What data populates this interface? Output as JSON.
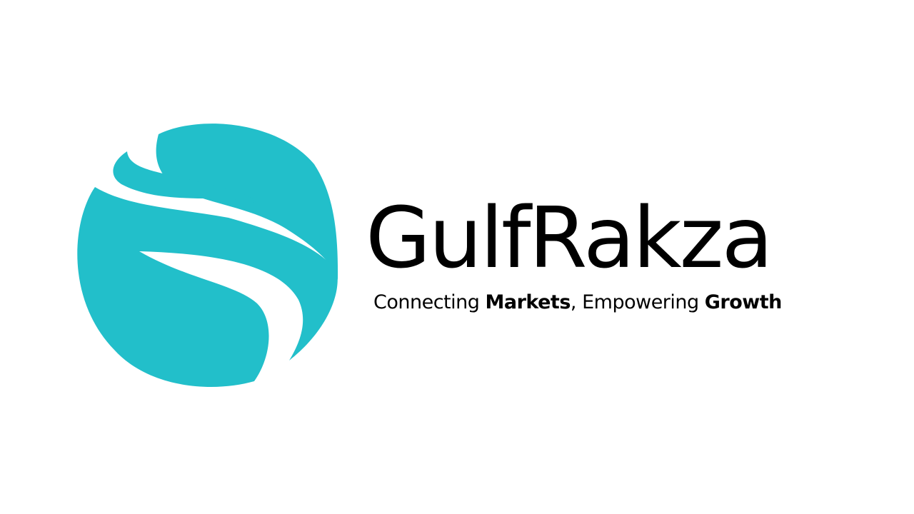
{
  "brand": {
    "name": "GulfRakza",
    "logo_icon": "swirl-globe-icon",
    "accent_color": "#22BFCA",
    "text_color": "#000000"
  },
  "tagline": {
    "part1": "Connecting ",
    "part2": "Markets",
    "part3": ", Empowering ",
    "part4": "Growth"
  }
}
